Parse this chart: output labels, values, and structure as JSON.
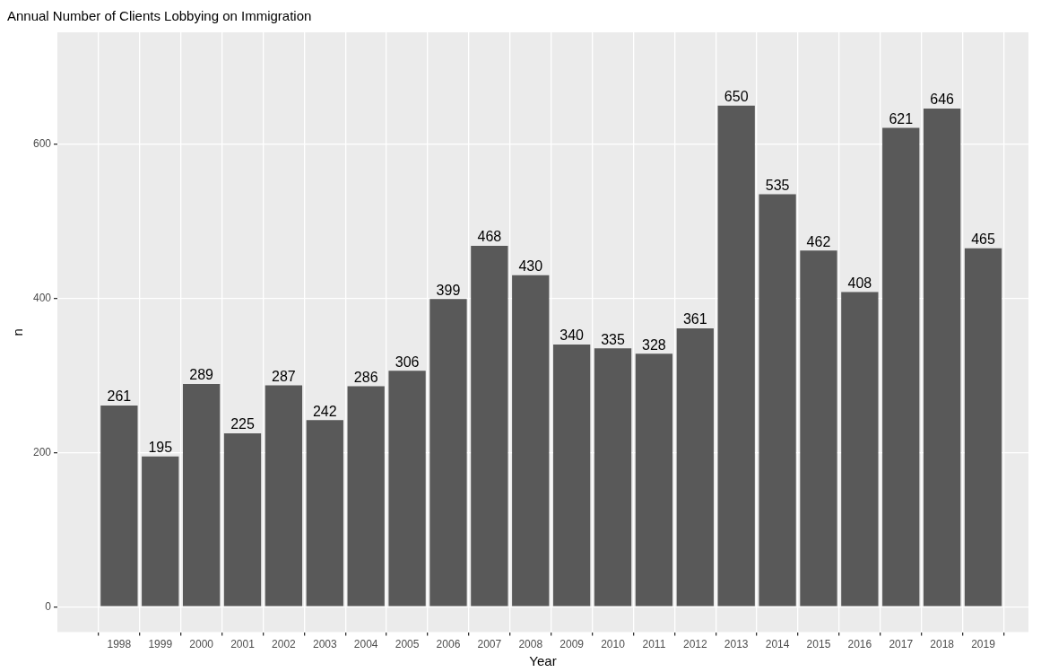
{
  "chart_data": {
    "type": "bar",
    "title": "Annual Number of Clients Lobbying on Immigration",
    "xlabel": "Year",
    "ylabel": "n",
    "x": [
      1998,
      1999,
      2000,
      2001,
      2002,
      2003,
      2004,
      2005,
      2006,
      2007,
      2008,
      2009,
      2010,
      2011,
      2012,
      2013,
      2014,
      2015,
      2016,
      2017,
      2018,
      2019
    ],
    "values": [
      261,
      195,
      289,
      225,
      287,
      242,
      286,
      306,
      399,
      468,
      430,
      340,
      335,
      328,
      361,
      650,
      535,
      462,
      408,
      621,
      646,
      465
    ],
    "color": "#595959",
    "xlim": [
      1996.5,
      2020.1
    ],
    "xticks": [
      1998,
      1999,
      2000,
      2001,
      2002,
      2003,
      2004,
      2005,
      2006,
      2007,
      2008,
      2009,
      2010,
      2011,
      2012,
      2013,
      2014,
      2015,
      2016,
      2017,
      2018,
      2019
    ],
    "ylim": [
      -33,
      745
    ],
    "yticks": [
      0,
      200,
      400,
      600
    ],
    "grid": true,
    "data_labels": true,
    "legend": false
  }
}
